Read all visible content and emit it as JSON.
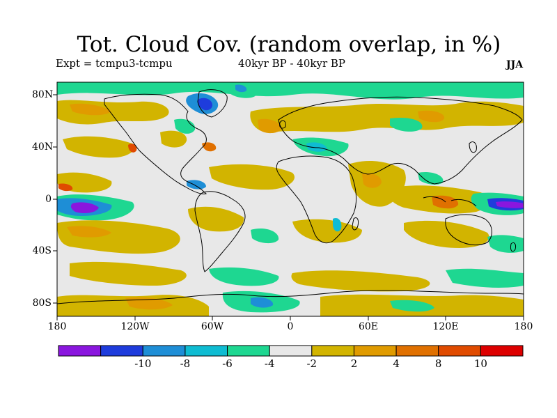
{
  "title": "Tot. Cloud Cov. (random overlap, in %)",
  "subtitle_left": "Expt = tcmpu3-tcmpu",
  "subtitle_mid": "40kyr BP - 40kyr BP",
  "season": "JJA",
  "lat_labels": [
    "80N",
    "40N",
    "0",
    "40S",
    "80S"
  ],
  "lon_labels": [
    "180",
    "120W",
    "60W",
    "0",
    "60E",
    "120E",
    "180"
  ],
  "colorbar": {
    "colors": [
      "#8a16de",
      "#1e3cdc",
      "#1e8ed6",
      "#0fbcd2",
      "#1ed791",
      "#e8e8e8",
      "#d2b400",
      "#e09b00",
      "#e07000",
      "#e04b00",
      "#dd0000"
    ],
    "tick_labels": [
      "-10",
      "-8",
      "-6",
      "-4",
      "-2",
      "2",
      "4",
      "8",
      "10"
    ]
  },
  "map_data": {
    "type": "filled-contour",
    "projection": "equirectangular",
    "lon_range": [
      -180,
      180
    ],
    "lat_range": [
      -90,
      90
    ],
    "background_class": "-2 to 2"
  }
}
